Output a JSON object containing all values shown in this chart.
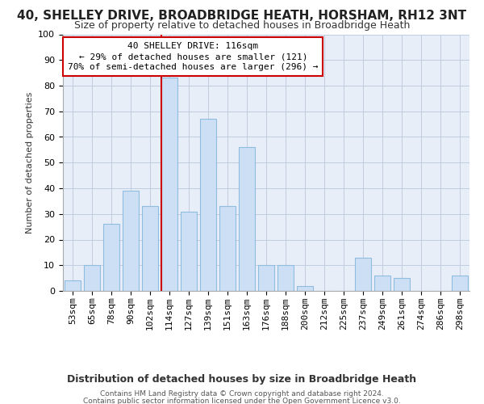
{
  "title1": "40, SHELLEY DRIVE, BROADBRIDGE HEATH, HORSHAM, RH12 3NT",
  "title2": "Size of property relative to detached houses in Broadbridge Heath",
  "xlabel": "Distribution of detached houses by size in Broadbridge Heath",
  "ylabel": "Number of detached properties",
  "footer1": "Contains HM Land Registry data © Crown copyright and database right 2024.",
  "footer2": "Contains public sector information licensed under the Open Government Licence v3.0.",
  "annotation_title": "40 SHELLEY DRIVE: 116sqm",
  "annotation_line1": "← 29% of detached houses are smaller (121)",
  "annotation_line2": "70% of semi-detached houses are larger (296) →",
  "bar_labels": [
    "53sqm",
    "65sqm",
    "78sqm",
    "90sqm",
    "102sqm",
    "114sqm",
    "127sqm",
    "139sqm",
    "151sqm",
    "163sqm",
    "176sqm",
    "188sqm",
    "200sqm",
    "212sqm",
    "225sqm",
    "237sqm",
    "249sqm",
    "261sqm",
    "274sqm",
    "286sqm",
    "298sqm"
  ],
  "bar_values": [
    4,
    10,
    26,
    39,
    33,
    83,
    31,
    67,
    33,
    56,
    10,
    10,
    2,
    0,
    0,
    13,
    6,
    5,
    0,
    0,
    6
  ],
  "bar_color": "#ccdff5",
  "bar_edgecolor": "#90bce0",
  "vline_color": "#cc0000",
  "bg_color": "#ffffff",
  "plot_bg_color": "#e8eef8",
  "grid_color": "#c0cce0",
  "annotation_box_edgecolor": "#cc0000",
  "ylim": [
    0,
    100
  ],
  "title1_fontsize": 11,
  "title2_fontsize": 9,
  "xlabel_fontsize": 9,
  "ylabel_fontsize": 8,
  "tick_fontsize": 8,
  "annot_fontsize": 8,
  "footer_fontsize": 6.5
}
